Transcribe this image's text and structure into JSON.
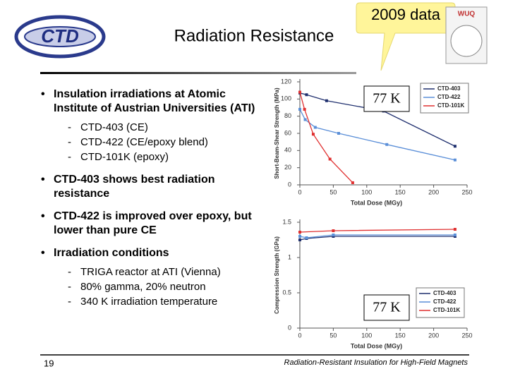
{
  "header": {
    "title": "Radiation Resistance",
    "logo": "CTD",
    "callout": "2009 data",
    "badge": "WUQ"
  },
  "bullets": [
    {
      "text": "Insulation irradiations at Atomic Institute of Austrian Universities (ATI)",
      "sub": [
        "CTD-403 (CE)",
        "CTD-422 (CE/epoxy blend)",
        "CTD-101K (epoxy)"
      ]
    },
    {
      "text": "CTD-403 shows best radiation resistance"
    },
    {
      "text": "CTD-422 is improved over epoxy, but lower than pure CE"
    },
    {
      "text": "Irradiation conditions",
      "sub": [
        "TRIGA reactor at ATI (Vienna)",
        "80% gamma, 20% neutron",
        "340 K irradiation temperature"
      ]
    }
  ],
  "footer": {
    "page": "19",
    "text": "Radiation-Resistant Insulation for High-Field Magnets"
  },
  "chart_data": [
    {
      "type": "line",
      "annotation": "77 K",
      "x_label": "Total Dose (MGy)",
      "y_label": "Short-Beam-Shear Strength (MPa)",
      "xlim": [
        0,
        250
      ],
      "xticks": [
        0,
        50,
        100,
        150,
        200,
        250
      ],
      "ylim": [
        0,
        120
      ],
      "yticks": [
        0,
        20,
        40,
        60,
        80,
        100,
        120
      ],
      "legend": "upper right",
      "grid": false,
      "series": [
        {
          "name": "CTD-403",
          "color": "#1f2f6e",
          "x": [
            0,
            10,
            40,
            125,
            232
          ],
          "values": [
            107,
            105,
            98,
            86,
            45
          ]
        },
        {
          "name": "CTD-422",
          "color": "#5b8fd8",
          "x": [
            0,
            8,
            23,
            58,
            130,
            232
          ],
          "values": [
            88,
            76,
            67,
            60,
            47,
            29
          ]
        },
        {
          "name": "CTD-101K",
          "color": "#e03030",
          "x": [
            0,
            7,
            20,
            45,
            79
          ],
          "values": [
            108,
            88,
            59,
            30,
            2.5
          ]
        }
      ]
    },
    {
      "type": "line",
      "annotation": "77 K",
      "x_label": "Total Dose (MGy)",
      "y_label": "Compression Strength (GPa)",
      "xlim": [
        0,
        250
      ],
      "xticks": [
        0,
        50,
        100,
        150,
        200,
        250
      ],
      "ylim": [
        0,
        1.5
      ],
      "yticks": [
        0,
        0.5,
        1,
        1.5
      ],
      "legend": "lower right",
      "grid": false,
      "series": [
        {
          "name": "CTD-403",
          "color": "#1f2f6e",
          "x": [
            0,
            10,
            50,
            232
          ],
          "values": [
            1.25,
            1.27,
            1.3,
            1.3
          ]
        },
        {
          "name": "CTD-422",
          "color": "#5b8fd8",
          "x": [
            0,
            10,
            50,
            232
          ],
          "values": [
            1.3,
            1.28,
            1.32,
            1.32
          ]
        },
        {
          "name": "CTD-101K",
          "color": "#e03030",
          "x": [
            0,
            50,
            232
          ],
          "values": [
            1.36,
            1.38,
            1.4
          ]
        }
      ]
    }
  ]
}
